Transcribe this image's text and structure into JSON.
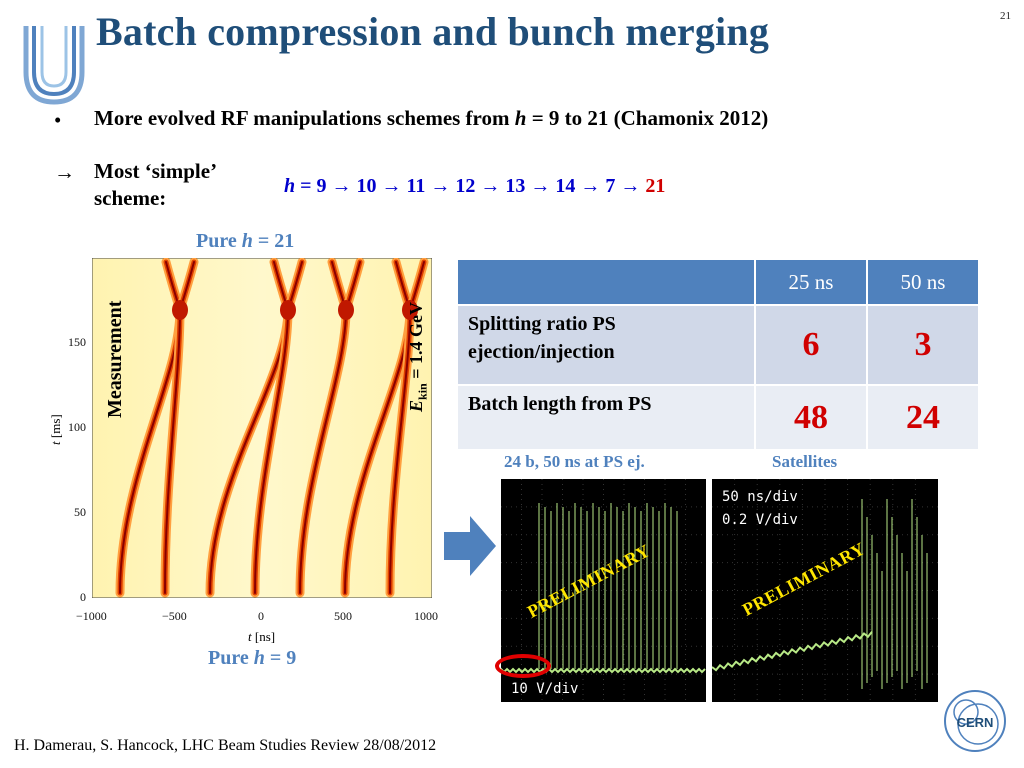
{
  "slide": {
    "title": "Batch compression and bunch merging",
    "number": "21"
  },
  "bullet1": {
    "marker": "•",
    "text_pre": "More evolved RF manipulations schemes from ",
    "h": "h",
    "text_post": " = 9 to 21 (Chamonix 2012)"
  },
  "scheme": {
    "marker": "→",
    "label_line1": "Most ‘simple’",
    "label_line2": "scheme:",
    "h": "h",
    "sequence": " = 9 → 10 → 11 → 12 → 13 → 14 → 7 → ",
    "last": "21"
  },
  "plot": {
    "top_label_pre": "Pure ",
    "top_label_h": "h",
    "top_label_post": " = 21",
    "bottom_label_pre": "Pure ",
    "bottom_label_h": "h",
    "bottom_label_post": " = 9",
    "measurement": "Measurement",
    "ekin_sym": "E",
    "ekin_sub": "kin",
    "ekin_val": " = 1.4 GeV",
    "x_axis_var": "t",
    "x_axis_unit": " [ns]",
    "y_axis_var": "t",
    "y_axis_unit": " [ms]",
    "x_ticks": [
      "−1000",
      "−500",
      "0",
      "500",
      "1000"
    ],
    "y_ticks": [
      "0",
      "50",
      "100",
      "150"
    ]
  },
  "table": {
    "headers": [
      "",
      "25 ns",
      "50 ns"
    ],
    "rows": [
      {
        "label_line1": "Splitting ratio PS",
        "label_line2": "ejection/injection",
        "v25": "6",
        "v50": "3"
      },
      {
        "label_line1": "Batch length from PS",
        "label_line2": "",
        "v25": "48",
        "v50": "24"
      }
    ]
  },
  "scopes": {
    "left_caption": "24 b, 50 ns at PS ej.",
    "right_caption": "Satellites",
    "left_scale": "10 V/div",
    "right_scale_line1": "50 ns/div",
    "right_scale_line2": "0.2 V/div",
    "watermark": "PRELIMINARY"
  },
  "footer": "H. Damerau, S. Hancock, LHC Beam Studies Review 28/08/2012",
  "cern_logo_text": "CERN",
  "colors": {
    "title": "#1F4E79",
    "accent_blue": "#4F81BD",
    "sequence_blue": "#0000CC",
    "highlight_red": "#D00000",
    "scope_trace": "#B8E986",
    "watermark_yellow": "#FFE600"
  }
}
